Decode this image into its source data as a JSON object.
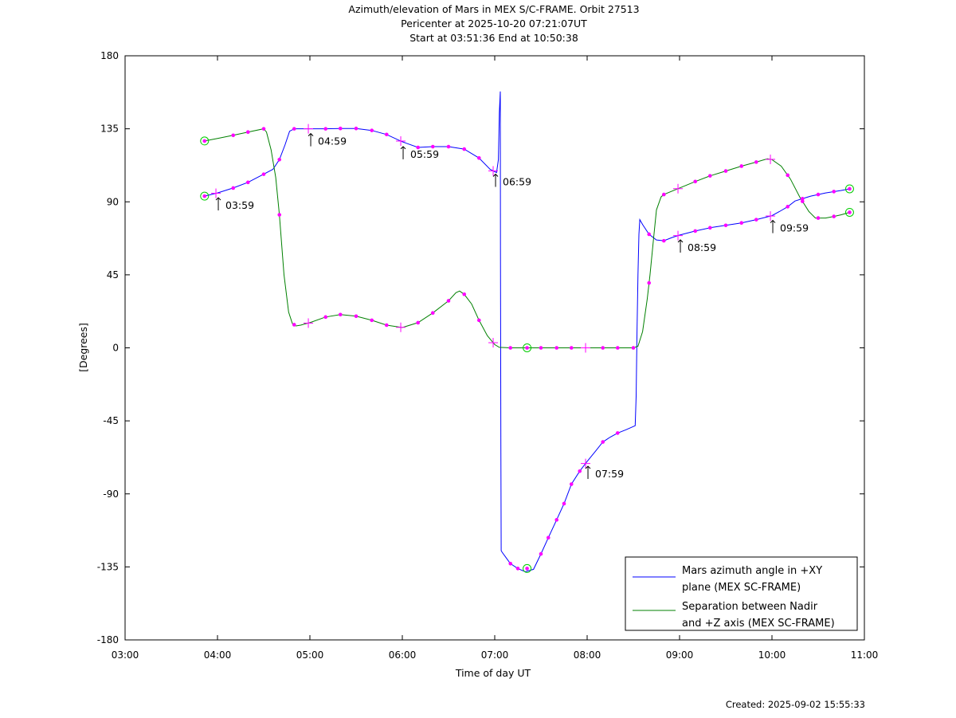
{
  "title_lines": [
    "Azimuth/elevation of Mars in MEX S/C-FRAME.  Orbit 27513",
    "Pericenter at 2025-10-20 07:21:07UT",
    "Start at 03:51:36 End at 10:50:38"
  ],
  "created": "Created: 2025-09-02 15:55:33",
  "colors": {
    "azimuth": "#0000ff",
    "separation": "#008000",
    "marker": "#ff00ff",
    "endpoint": "#00cc00"
  },
  "chart_data": {
    "type": "line",
    "xlabel": "Time of day UT",
    "ylabel": "[Degrees]",
    "xlim": [
      3,
      11
    ],
    "ylim": [
      -180,
      180
    ],
    "xticks": [
      3,
      4,
      5,
      6,
      7,
      8,
      9,
      10,
      11
    ],
    "xtick_labels": [
      "03:00",
      "04:00",
      "05:00",
      "06:00",
      "07:00",
      "08:00",
      "09:00",
      "10:00",
      "11:00"
    ],
    "yticks": [
      180,
      135,
      90,
      45,
      0,
      -45,
      -90,
      -135,
      -180
    ],
    "ytick_labels": [
      "180",
      "135",
      "90",
      "45",
      "0",
      "-45",
      "-90",
      "-135",
      "-180"
    ],
    "series": [
      {
        "name": "Mars azimuth angle in +XY plane (MEX SC-FRAME)",
        "legend_lines": [
          "Mars azimuth angle in +XY",
          "plane (MEX SC-FRAME)"
        ],
        "points": [
          [
            3.86,
            93.5
          ],
          [
            4.0,
            95.5
          ],
          [
            4.17,
            98.5
          ],
          [
            4.33,
            102
          ],
          [
            4.5,
            107
          ],
          [
            4.6,
            110
          ],
          [
            4.67,
            116
          ],
          [
            4.73,
            125
          ],
          [
            4.78,
            133.5
          ],
          [
            4.83,
            135
          ],
          [
            5.0,
            135
          ],
          [
            5.17,
            135
          ],
          [
            5.33,
            135.2
          ],
          [
            5.5,
            135.2
          ],
          [
            5.67,
            134
          ],
          [
            5.83,
            131.5
          ],
          [
            6.0,
            127
          ],
          [
            6.17,
            123.5
          ],
          [
            6.33,
            124
          ],
          [
            6.5,
            124
          ],
          [
            6.67,
            122.5
          ],
          [
            6.83,
            117
          ],
          [
            6.95,
            110
          ],
          [
            7.02,
            108
          ],
          [
            7.04,
            116
          ],
          [
            7.05,
            145
          ],
          [
            7.06,
            158
          ],
          [
            7.062,
            60
          ],
          [
            7.066,
            -60
          ],
          [
            7.07,
            -125
          ],
          [
            7.08,
            -126
          ],
          [
            7.17,
            -133
          ],
          [
            7.25,
            -136
          ],
          [
            7.33,
            -138
          ],
          [
            7.42,
            -136.5
          ],
          [
            7.5,
            -127
          ],
          [
            7.58,
            -117
          ],
          [
            7.67,
            -106
          ],
          [
            7.75,
            -96
          ],
          [
            7.83,
            -84
          ],
          [
            7.92,
            -76
          ],
          [
            8.0,
            -70
          ],
          [
            8.1,
            -63
          ],
          [
            8.17,
            -58
          ],
          [
            8.25,
            -55
          ],
          [
            8.33,
            -52.5
          ],
          [
            8.42,
            -50.5
          ],
          [
            8.52,
            -48
          ],
          [
            8.53,
            -30
          ],
          [
            8.54,
            10
          ],
          [
            8.55,
            45
          ],
          [
            8.56,
            70
          ],
          [
            8.57,
            79
          ],
          [
            8.6,
            76
          ],
          [
            8.67,
            70
          ],
          [
            8.75,
            66.5
          ],
          [
            8.83,
            66
          ],
          [
            8.92,
            68
          ],
          [
            9.0,
            69.5
          ],
          [
            9.17,
            72
          ],
          [
            9.33,
            74
          ],
          [
            9.5,
            75.5
          ],
          [
            9.67,
            77
          ],
          [
            9.83,
            79
          ],
          [
            10.0,
            81.5
          ],
          [
            10.08,
            84
          ],
          [
            10.17,
            87
          ],
          [
            10.25,
            90.5
          ],
          [
            10.42,
            93.5
          ],
          [
            10.58,
            95.5
          ],
          [
            10.75,
            97
          ],
          [
            10.84,
            98
          ]
        ],
        "markers": [
          4.17,
          4.33,
          4.5,
          4.67,
          4.83,
          5.17,
          5.33,
          5.5,
          5.67,
          5.83,
          6.17,
          6.33,
          6.5,
          6.67,
          6.83,
          7.17,
          7.25,
          7.5,
          7.58,
          7.67,
          7.75,
          7.83,
          7.92,
          8.17,
          8.33,
          8.67,
          8.83,
          9.17,
          9.33,
          9.5,
          9.67,
          9.83,
          10.17,
          10.33,
          10.5,
          10.67
        ],
        "hour_marks": [
          3.983,
          4.983,
          5.983,
          6.983,
          7.983,
          8.983,
          9.983
        ]
      },
      {
        "name": "Separation between Nadir and +Z axis (MEX SC-FRAME)",
        "legend_lines": [
          "Separation between Nadir",
          "and +Z axis (MEX SC-FRAME)"
        ],
        "points": [
          [
            3.86,
            127.5
          ],
          [
            4.0,
            129
          ],
          [
            4.17,
            131
          ],
          [
            4.33,
            133
          ],
          [
            4.5,
            135
          ],
          [
            4.53,
            133
          ],
          [
            4.58,
            122
          ],
          [
            4.63,
            105
          ],
          [
            4.67,
            82
          ],
          [
            4.72,
            45
          ],
          [
            4.77,
            22
          ],
          [
            4.81,
            15
          ],
          [
            4.85,
            13.5
          ],
          [
            4.9,
            14
          ],
          [
            5.0,
            15.5
          ],
          [
            5.17,
            19
          ],
          [
            5.33,
            20.5
          ],
          [
            5.5,
            19.5
          ],
          [
            5.67,
            17
          ],
          [
            5.83,
            14
          ],
          [
            6.0,
            12.5
          ],
          [
            6.17,
            15.5
          ],
          [
            6.33,
            21.5
          ],
          [
            6.5,
            29
          ],
          [
            6.58,
            34
          ],
          [
            6.62,
            35
          ],
          [
            6.67,
            33
          ],
          [
            6.75,
            27
          ],
          [
            6.83,
            17
          ],
          [
            6.92,
            7.5
          ],
          [
            7.0,
            2
          ],
          [
            7.05,
            0.3
          ],
          [
            7.17,
            0
          ],
          [
            7.33,
            0
          ],
          [
            7.5,
            0
          ],
          [
            7.67,
            0
          ],
          [
            7.83,
            0
          ],
          [
            8.0,
            0
          ],
          [
            8.17,
            0
          ],
          [
            8.33,
            0
          ],
          [
            8.5,
            0
          ],
          [
            8.55,
            1
          ],
          [
            8.6,
            10
          ],
          [
            8.65,
            30
          ],
          [
            8.68,
            45
          ],
          [
            8.72,
            68
          ],
          [
            8.75,
            85
          ],
          [
            8.8,
            93
          ],
          [
            8.83,
            94.5
          ],
          [
            9.0,
            98.5
          ],
          [
            9.17,
            102.5
          ],
          [
            9.33,
            106
          ],
          [
            9.5,
            109
          ],
          [
            9.67,
            112
          ],
          [
            9.83,
            114.5
          ],
          [
            9.95,
            116.5
          ],
          [
            10.0,
            116
          ],
          [
            10.1,
            112
          ],
          [
            10.2,
            104
          ],
          [
            10.3,
            93
          ],
          [
            10.4,
            84
          ],
          [
            10.47,
            80
          ],
          [
            10.58,
            80
          ],
          [
            10.67,
            81
          ],
          [
            10.75,
            82
          ],
          [
            10.84,
            83.5
          ]
        ],
        "markers": [
          4.17,
          4.33,
          4.5,
          4.67,
          4.83,
          5.17,
          5.33,
          5.5,
          5.67,
          5.83,
          6.17,
          6.33,
          6.5,
          6.67,
          6.83,
          7.17,
          7.5,
          7.67,
          7.83,
          8.17,
          8.33,
          8.5,
          8.67,
          8.83,
          9.17,
          9.33,
          9.5,
          9.67,
          9.83,
          10.17,
          10.33,
          10.5,
          10.67
        ],
        "hour_marks": [
          4.983,
          5.983,
          6.983,
          7.983,
          8.983,
          9.983
        ]
      }
    ],
    "time_labels": [
      {
        "text": "03:59",
        "x": 3.983,
        "y": 95.5
      },
      {
        "text": "04:59",
        "x": 4.983,
        "y": 135
      },
      {
        "text": "05:59",
        "x": 5.983,
        "y": 127
      },
      {
        "text": "06:59",
        "x": 6.983,
        "y": 110
      },
      {
        "text": "07:59",
        "x": 7.983,
        "y": -70
      },
      {
        "text": "08:59",
        "x": 8.983,
        "y": 69.5
      },
      {
        "text": "09:59",
        "x": 9.983,
        "y": 81.5
      }
    ],
    "endpoints": [
      {
        "x": 3.86,
        "y": 93.5
      },
      {
        "x": 3.86,
        "y": 127.5
      },
      {
        "x": 10.84,
        "y": 98
      },
      {
        "x": 10.84,
        "y": 83.5
      },
      {
        "x": 7.35,
        "y": -136
      },
      {
        "x": 7.35,
        "y": 0
      }
    ],
    "legend_position": "bottom-right",
    "grid": false
  }
}
